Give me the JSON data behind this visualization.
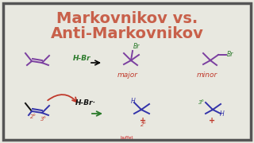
{
  "title_line1": "Markovnikov vs.",
  "title_line2": "Anti-Markovnikov",
  "title_color": "#c8604a",
  "title_fontsize": 14,
  "bg_color": "#e8e8e0",
  "border_color": "#555555",
  "mol_color": "#7b3fa0",
  "mol_color2": "#3333aa",
  "hbr_color": "#2a7a2a",
  "arrow_color": "#222222",
  "major_color": "#c0392b",
  "minor_color": "#c0392b",
  "br_color": "#2a7a2a",
  "radical_arrow_color": "#c0392b",
  "plus_color": "#c0392b",
  "label_color": "#c0392b",
  "label3_color": "#1a7a1a",
  "footer_color": "#cc2222",
  "footer_text": "buffet"
}
